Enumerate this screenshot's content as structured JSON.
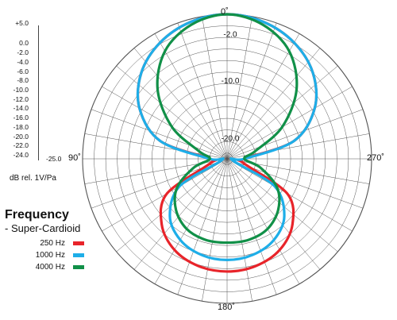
{
  "chart_data": {
    "type": "polar-line",
    "title": "",
    "scale_labels": [
      "+5.0",
      "0.0",
      "-2.0",
      "-4.0",
      "-6.0",
      "-8.0",
      "-10.0",
      "-12.0",
      "-14.0",
      "-16.0",
      "-18.0",
      "-20.0",
      "-22.0",
      "-24.0",
      "-25.0"
    ],
    "unit_label": "dB rel. 1V/Pa",
    "angle_labels": {
      "top": "0˚",
      "left": "90˚",
      "right": "270˚",
      "bottom": "180˚"
    },
    "ring_labels": [
      "-2.0",
      "-10.0",
      "-20.0"
    ],
    "r_range_db": [
      -25,
      0
    ],
    "legend_title": "Frequency",
    "legend_subtitle": "- Super-Cardioid",
    "series": [
      {
        "name": "250 Hz",
        "color": "#e8242a",
        "points_deg_db": [
          [
            0,
            0
          ],
          [
            15,
            -0.5
          ],
          [
            30,
            -1.8
          ],
          [
            45,
            -4.0
          ],
          [
            60,
            -7.5
          ],
          [
            75,
            -13.0
          ],
          [
            90,
            -22.0
          ],
          [
            105,
            -22.0
          ],
          [
            120,
            -13.0
          ],
          [
            135,
            -9.0
          ],
          [
            150,
            -6.8
          ],
          [
            165,
            -5.8
          ],
          [
            180,
            -5.5
          ],
          [
            195,
            -5.8
          ],
          [
            210,
            -6.8
          ],
          [
            225,
            -9.0
          ],
          [
            240,
            -13.0
          ],
          [
            255,
            -22.0
          ],
          [
            270,
            -22.0
          ],
          [
            285,
            -13.0
          ],
          [
            300,
            -7.5
          ],
          [
            315,
            -4.0
          ],
          [
            330,
            -1.8
          ],
          [
            345,
            -0.5
          ]
        ]
      },
      {
        "name": "1000 Hz",
        "color": "#1eaee8",
        "points_deg_db": [
          [
            0,
            0
          ],
          [
            15,
            -0.5
          ],
          [
            30,
            -1.8
          ],
          [
            45,
            -4.0
          ],
          [
            60,
            -7.5
          ],
          [
            75,
            -13.0
          ],
          [
            90,
            -22.0
          ],
          [
            105,
            -24.0
          ],
          [
            120,
            -15.5
          ],
          [
            135,
            -11.0
          ],
          [
            150,
            -8.8
          ],
          [
            165,
            -7.8
          ],
          [
            180,
            -7.5
          ],
          [
            195,
            -7.8
          ],
          [
            210,
            -8.8
          ],
          [
            225,
            -11.0
          ],
          [
            240,
            -15.5
          ],
          [
            255,
            -24.0
          ],
          [
            270,
            -22.0
          ],
          [
            285,
            -13.0
          ],
          [
            300,
            -7.5
          ],
          [
            315,
            -4.0
          ],
          [
            330,
            -1.8
          ],
          [
            345,
            -0.5
          ]
        ]
      },
      {
        "name": "4000 Hz",
        "color": "#119048",
        "points_deg_db": [
          [
            0,
            0
          ],
          [
            15,
            -1.0
          ],
          [
            30,
            -3.5
          ],
          [
            45,
            -8.0
          ],
          [
            60,
            -14.0
          ],
          [
            75,
            -20.0
          ],
          [
            90,
            -22.0
          ],
          [
            105,
            -19.0
          ],
          [
            120,
            -15.0
          ],
          [
            135,
            -12.5
          ],
          [
            150,
            -11.0
          ],
          [
            165,
            -10.5
          ],
          [
            180,
            -10.5
          ],
          [
            195,
            -10.5
          ],
          [
            210,
            -11.0
          ],
          [
            225,
            -12.5
          ],
          [
            240,
            -15.0
          ],
          [
            255,
            -19.0
          ],
          [
            270,
            -22.0
          ],
          [
            285,
            -20.0
          ],
          [
            300,
            -14.0
          ],
          [
            315,
            -8.0
          ],
          [
            330,
            -3.5
          ],
          [
            345,
            -1.0
          ]
        ]
      }
    ]
  }
}
